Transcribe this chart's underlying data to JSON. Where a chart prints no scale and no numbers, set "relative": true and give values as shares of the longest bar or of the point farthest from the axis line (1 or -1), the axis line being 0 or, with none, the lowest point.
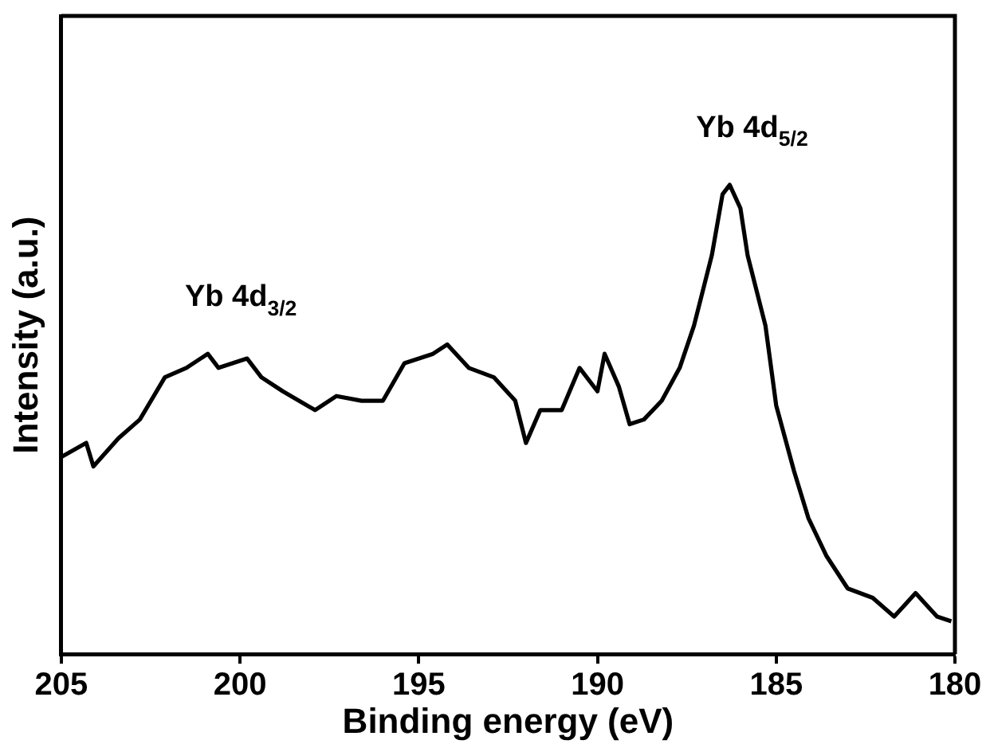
{
  "chart_data": {
    "type": "line",
    "xlabel": "Binding energy (eV)",
    "ylabel": "Intensity (a.u.)",
    "relative": true,
    "xlim": [
      205,
      180
    ],
    "xticks": [
      205,
      200,
      195,
      190,
      185,
      180
    ],
    "grid": false,
    "legend": false,
    "marker": "none",
    "line_style": "solid",
    "annotations": [
      {
        "text": "Yb 4d$_{3/2}$",
        "x": 200.6,
        "y": 0.64
      },
      {
        "text": "Yb 4d$_{5/2}$",
        "x": 186.3,
        "y": 1.0
      }
    ],
    "series": [
      {
        "color": "#000000",
        "x": [
          205.0,
          204.3,
          204.1,
          203.4,
          202.8,
          202.1,
          201.5,
          200.9,
          200.6,
          199.8,
          199.4,
          198.8,
          197.9,
          197.3,
          196.6,
          196.0,
          195.4,
          194.6,
          194.2,
          193.6,
          192.9,
          192.3,
          192.0,
          191.6,
          191.0,
          190.5,
          190.0,
          189.8,
          189.4,
          189.1,
          188.7,
          188.2,
          187.7,
          187.3,
          186.8,
          186.5,
          186.3,
          186.0,
          185.8,
          185.3,
          185.0,
          184.5,
          184.1,
          183.6,
          183.0,
          182.3,
          181.7,
          181.1,
          180.5,
          180.1
        ],
        "values": [
          0.42,
          0.45,
          0.4,
          0.46,
          0.5,
          0.59,
          0.61,
          0.64,
          0.61,
          0.63,
          0.59,
          0.56,
          0.52,
          0.55,
          0.54,
          0.54,
          0.62,
          0.64,
          0.66,
          0.61,
          0.59,
          0.54,
          0.45,
          0.52,
          0.52,
          0.61,
          0.56,
          0.64,
          0.57,
          0.49,
          0.5,
          0.54,
          0.61,
          0.7,
          0.85,
          0.98,
          1.0,
          0.95,
          0.85,
          0.7,
          0.53,
          0.39,
          0.29,
          0.21,
          0.14,
          0.12,
          0.08,
          0.13,
          0.08,
          0.07
        ]
      }
    ]
  }
}
